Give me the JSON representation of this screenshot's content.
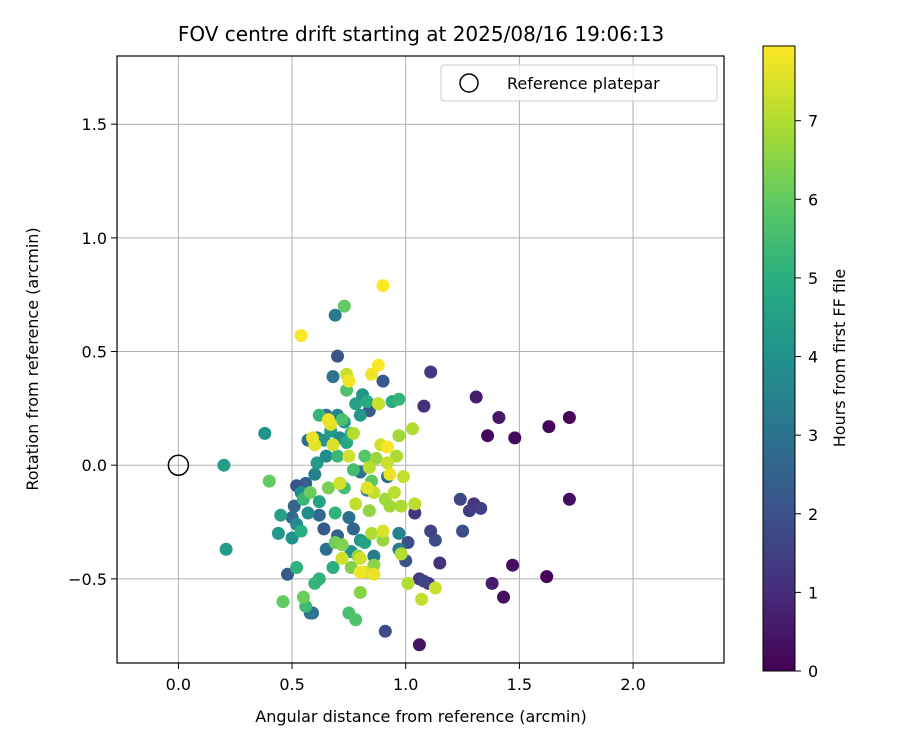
{
  "chart_data": {
    "type": "scatter",
    "title": "FOV centre drift starting at 2025/08/16 19:06:13",
    "xlabel": "Angular distance from reference (arcmin)",
    "ylabel": "Rotation from reference (arcmin)",
    "xlim": [
      -0.27,
      2.4
    ],
    "ylim": [
      -0.87,
      1.8
    ],
    "xticks": [
      0.0,
      0.5,
      1.0,
      1.5,
      2.0
    ],
    "xtick_labels": [
      "0.0",
      "0.5",
      "1.0",
      "1.5",
      "2.0"
    ],
    "yticks": [
      -0.5,
      0.0,
      0.5,
      1.0,
      1.5
    ],
    "ytick_labels": [
      "−0.5",
      "0.0",
      "0.5",
      "1.0",
      "1.5"
    ],
    "grid": true,
    "legend": {
      "placement": "top-right",
      "entries": [
        "Reference platepar"
      ]
    },
    "reference": {
      "label": "Reference platepar",
      "x": 0.0,
      "y": 0.0,
      "marker": "open-circle"
    },
    "colorbar": {
      "label": "Hours from first FF file",
      "colormap": "viridis",
      "range": [
        0,
        7.95
      ],
      "ticks": [
        0,
        1,
        2,
        3,
        4,
        5,
        6,
        7
      ],
      "tick_labels": [
        "0",
        "1",
        "2",
        "3",
        "4",
        "5",
        "6",
        "7"
      ]
    },
    "series": [
      {
        "points": [
          [
            1.63,
            0.17,
            0.1
          ],
          [
            1.72,
            0.21,
            0.1
          ],
          [
            1.48,
            0.12,
            0.2
          ],
          [
            1.36,
            0.13,
            0.2
          ],
          [
            1.41,
            0.21,
            0.5
          ],
          [
            1.31,
            0.3,
            0.6
          ],
          [
            1.72,
            -0.15,
            0.3
          ],
          [
            1.62,
            -0.49,
            0.1
          ],
          [
            1.47,
            -0.44,
            0.3
          ],
          [
            1.43,
            -0.58,
            0.3
          ],
          [
            1.38,
            -0.52,
            0.6
          ],
          [
            1.06,
            -0.79,
            0.4
          ],
          [
            1.3,
            -0.17,
            1.2
          ],
          [
            1.28,
            -0.2,
            1.4
          ],
          [
            1.33,
            -0.19,
            1.5
          ],
          [
            1.24,
            -0.15,
            1.7
          ],
          [
            1.25,
            -0.29,
            1.9
          ],
          [
            1.11,
            0.41,
            1.3
          ],
          [
            1.08,
            0.26,
            1.1
          ],
          [
            1.15,
            -0.43,
            1.1
          ],
          [
            1.1,
            -0.52,
            1.2
          ],
          [
            1.06,
            -0.5,
            1.4
          ],
          [
            1.08,
            -0.51,
            1.6
          ],
          [
            1.13,
            -0.33,
            1.8
          ],
          [
            1.11,
            -0.29,
            1.6
          ],
          [
            1.04,
            -0.21,
            1.2
          ],
          [
            1.01,
            -0.34,
            1.9
          ],
          [
            1.0,
            -0.42,
            2.0
          ],
          [
            0.91,
            -0.73,
            1.8
          ],
          [
            0.7,
            0.48,
            2.1
          ],
          [
            0.69,
            0.66,
            3.2
          ],
          [
            0.68,
            0.39,
            3.0
          ],
          [
            0.9,
            0.37,
            2.2
          ],
          [
            0.88,
            0.27,
            2.5
          ],
          [
            0.84,
            0.24,
            2.3
          ],
          [
            0.65,
            0.22,
            2.8
          ],
          [
            0.57,
            0.11,
            2.9
          ],
          [
            0.61,
            0.12,
            3.4
          ],
          [
            0.56,
            -0.08,
            2.4
          ],
          [
            0.52,
            -0.09,
            2.1
          ],
          [
            0.51,
            -0.18,
            2.6
          ],
          [
            0.5,
            -0.23,
            2.7
          ],
          [
            0.48,
            -0.48,
            2.3
          ],
          [
            0.59,
            -0.65,
            2.8
          ],
          [
            0.58,
            -0.65,
            3.1
          ],
          [
            0.62,
            -0.22,
            2.7
          ],
          [
            0.64,
            -0.28,
            2.2
          ],
          [
            0.65,
            -0.37,
            2.9
          ],
          [
            0.7,
            -0.31,
            2.5
          ],
          [
            0.75,
            -0.23,
            2.9
          ],
          [
            0.77,
            -0.28,
            2.6
          ],
          [
            0.8,
            -0.03,
            2.9
          ],
          [
            0.83,
            -0.11,
            3.2
          ],
          [
            0.92,
            -0.05,
            2.8
          ],
          [
            0.86,
            -0.4,
            3.3
          ],
          [
            0.97,
            -0.37,
            3.4
          ],
          [
            0.97,
            -0.3,
            3.6
          ],
          [
            0.38,
            0.14,
            4.0
          ],
          [
            0.2,
            0.0,
            4.4
          ],
          [
            0.21,
            -0.37,
            4.4
          ],
          [
            0.44,
            -0.3,
            4.2
          ],
          [
            0.45,
            -0.22,
            4.5
          ],
          [
            0.5,
            -0.32,
            4.0
          ],
          [
            0.52,
            -0.26,
            3.7
          ],
          [
            0.54,
            -0.12,
            3.9
          ],
          [
            0.57,
            -0.21,
            3.8
          ],
          [
            0.6,
            -0.04,
            3.5
          ],
          [
            0.61,
            0.01,
            4.3
          ],
          [
            0.62,
            -0.16,
            4.6
          ],
          [
            0.65,
            0.04,
            3.9
          ],
          [
            0.64,
            0.11,
            4.1
          ],
          [
            0.67,
            0.15,
            4.4
          ],
          [
            0.7,
            0.22,
            3.6
          ],
          [
            0.71,
            0.12,
            3.8
          ],
          [
            0.73,
            0.19,
            4.3
          ],
          [
            0.74,
            0.1,
            4.7
          ],
          [
            0.76,
            0.14,
            5.0
          ],
          [
            0.78,
            0.27,
            4.5
          ],
          [
            0.8,
            0.22,
            4.2
          ],
          [
            0.81,
            0.31,
            4.1
          ],
          [
            0.83,
            0.28,
            4.8
          ],
          [
            0.76,
            -0.38,
            4.0
          ],
          [
            0.8,
            -0.33,
            4.3
          ],
          [
            0.82,
            -0.34,
            4.6
          ],
          [
            0.94,
            0.28,
            4.9
          ],
          [
            0.97,
            0.29,
            5.2
          ],
          [
            0.52,
            -0.45,
            5.1
          ],
          [
            0.54,
            -0.29,
            5.0
          ],
          [
            0.55,
            -0.15,
            5.3
          ],
          [
            0.56,
            -0.62,
            5.4
          ],
          [
            0.62,
            -0.5,
            5.1
          ],
          [
            0.6,
            -0.52,
            5.2
          ],
          [
            0.68,
            -0.45,
            5.0
          ],
          [
            0.69,
            -0.21,
            5.1
          ],
          [
            0.71,
            -0.08,
            5.3
          ],
          [
            0.73,
            -0.1,
            5.5
          ],
          [
            0.62,
            0.22,
            5.2
          ],
          [
            0.66,
            0.2,
            5.4
          ],
          [
            0.7,
            0.04,
            5.3
          ],
          [
            0.72,
            0.2,
            5.6
          ],
          [
            0.74,
            0.33,
            5.7
          ],
          [
            0.75,
            -0.65,
            5.6
          ],
          [
            0.78,
            -0.68,
            5.7
          ],
          [
            0.77,
            -0.02,
            5.5
          ],
          [
            0.82,
            0.04,
            5.8
          ],
          [
            0.85,
            -0.07,
            5.9
          ],
          [
            0.73,
            0.7,
            6.0
          ],
          [
            0.46,
            -0.6,
            6.0
          ],
          [
            0.4,
            -0.07,
            6.0
          ],
          [
            0.55,
            -0.58,
            6.1
          ],
          [
            0.58,
            -0.12,
            6.1
          ],
          [
            0.66,
            -0.1,
            6.3
          ],
          [
            0.69,
            -0.34,
            6.2
          ],
          [
            0.72,
            -0.35,
            6.4
          ],
          [
            0.76,
            -0.45,
            6.4
          ],
          [
            0.79,
            -0.4,
            6.6
          ],
          [
            0.8,
            -0.56,
            6.5
          ],
          [
            0.84,
            -0.2,
            6.6
          ],
          [
            0.86,
            -0.44,
            6.5
          ],
          [
            0.87,
            0.03,
            6.7
          ],
          [
            0.9,
            -0.33,
            6.7
          ],
          [
            0.91,
            -0.15,
            6.8
          ],
          [
            0.93,
            -0.18,
            6.8
          ],
          [
            0.96,
            0.04,
            6.9
          ],
          [
            0.98,
            -0.18,
            6.9
          ],
          [
            0.98,
            -0.39,
            7.0
          ],
          [
            1.01,
            -0.52,
            7.0
          ],
          [
            1.03,
            0.16,
            7.0
          ],
          [
            1.04,
            -0.17,
            7.1
          ],
          [
            1.07,
            -0.59,
            7.2
          ],
          [
            1.13,
            -0.54,
            7.3
          ],
          [
            0.99,
            -0.05,
            7.2
          ],
          [
            0.97,
            0.13,
            6.8
          ],
          [
            0.95,
            -0.12,
            7.1
          ],
          [
            0.92,
            0.01,
            7.3
          ],
          [
            0.89,
            0.09,
            7.4
          ],
          [
            0.88,
            0.27,
            7.3
          ],
          [
            0.86,
            -0.12,
            7.2
          ],
          [
            0.85,
            -0.3,
            7.0
          ],
          [
            0.84,
            -0.01,
            7.1
          ],
          [
            0.82,
            -0.47,
            7.5
          ],
          [
            0.8,
            -0.41,
            7.4
          ],
          [
            0.78,
            -0.17,
            7.2
          ],
          [
            0.77,
            0.14,
            7.0
          ],
          [
            0.75,
            0.04,
            7.4
          ],
          [
            0.74,
            0.4,
            7.3
          ],
          [
            0.72,
            -0.41,
            7.4
          ],
          [
            0.71,
            -0.08,
            7.4
          ],
          [
            0.68,
            0.09,
            7.5
          ],
          [
            0.67,
            0.18,
            7.6
          ],
          [
            0.66,
            0.2,
            7.7
          ],
          [
            0.6,
            0.09,
            7.6
          ],
          [
            0.59,
            0.12,
            7.7
          ],
          [
            0.75,
            0.37,
            7.8
          ],
          [
            0.85,
            0.4,
            7.8
          ],
          [
            0.88,
            0.44,
            7.9
          ],
          [
            0.54,
            0.57,
            7.9
          ],
          [
            0.9,
            0.79,
            7.95
          ],
          [
            0.92,
            0.08,
            7.9
          ],
          [
            0.8,
            -0.47,
            7.8
          ],
          [
            0.83,
            -0.1,
            7.6
          ],
          [
            0.86,
            -0.48,
            7.7
          ],
          [
            0.9,
            -0.29,
            7.5
          ],
          [
            0.93,
            -0.04,
            7.7
          ]
        ]
      }
    ]
  }
}
